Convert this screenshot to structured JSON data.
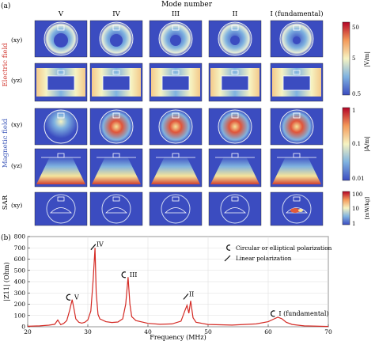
{
  "figure_a": {
    "panel_label": "(a)",
    "top_title": "Mode number",
    "columns": [
      "V",
      "IV",
      "III",
      "II",
      "I (fundamental)"
    ],
    "electric_field_label": "Electric field",
    "magnetic_field_label": "Magnetic field",
    "sar_label": "SAR",
    "row_labels": [
      "(xy)",
      "(yz)",
      "(xy)",
      "(yz)",
      "(xy)"
    ],
    "colorbars": [
      {
        "name": "electric",
        "unit": "|V/m|",
        "ticks": [
          "50",
          "5",
          "0.5"
        ],
        "scale": "log"
      },
      {
        "name": "magnetic",
        "unit": "|A/m|",
        "ticks": [
          "1",
          "0.1",
          "0.01"
        ],
        "scale": "log"
      },
      {
        "name": "sar",
        "unit": "[mW/kg]",
        "ticks": [
          "100",
          "10",
          "1"
        ],
        "scale": "log"
      }
    ],
    "colors": {
      "background": "#3a4ea6",
      "cold": "#3f56b0",
      "warm": "#f4e39a",
      "hot": "#c8302a",
      "electric_label": "#d1332b",
      "magnetic_label": "#3a55b8"
    }
  },
  "figure_b": {
    "panel_label": "(b)",
    "legend": [
      "Circular or elliptical polarization",
      "Linear polarization"
    ],
    "annotations": [
      {
        "label": "V",
        "symbol": "circular",
        "x": 27.5,
        "y": 235
      },
      {
        "label": "IV",
        "symbol": "linear",
        "x": 31.3,
        "y": 690
      },
      {
        "label": "III",
        "symbol": "circular",
        "x": 36.7,
        "y": 435
      },
      {
        "label": "II",
        "symbol": "linear",
        "x": 46.7,
        "y": 250
      },
      {
        "label": "I (fundamental)",
        "symbol": "circular",
        "x": 61.5,
        "y": 90
      }
    ]
  },
  "chart_data": {
    "type": "line",
    "xlabel": "Frequency (MHz)",
    "ylabel": "|Z11| (Ohm)",
    "xlim": [
      20,
      70
    ],
    "ylim": [
      0,
      800
    ],
    "xticks": [
      "20",
      "30",
      "40",
      "50",
      "60",
      "70"
    ],
    "yticks": [
      "0",
      "100",
      "200",
      "300",
      "400",
      "500",
      "600",
      "700",
      "800"
    ],
    "grid": true,
    "series": [
      {
        "color": "#d42a24",
        "x": [
          20,
          22,
          23.5,
          24.5,
          25,
          25.5,
          26,
          26.5,
          27,
          27.4,
          27.7,
          28,
          28.5,
          29,
          29.5,
          30,
          30.5,
          30.9,
          31.2,
          31.4,
          31.7,
          32,
          33,
          34,
          35,
          35.8,
          36.3,
          36.7,
          37,
          37.3,
          38,
          40,
          42,
          44,
          45.5,
          46.2,
          46.5,
          46.8,
          47.1,
          47.5,
          48,
          50,
          54,
          58,
          60,
          61,
          61.6,
          62.3,
          63,
          64,
          66,
          70
        ],
        "y": [
          4,
          8,
          14,
          22,
          60,
          18,
          30,
          55,
          150,
          240,
          160,
          70,
          40,
          32,
          40,
          60,
          140,
          420,
          700,
          300,
          110,
          70,
          45,
          38,
          42,
          70,
          200,
          440,
          200,
          90,
          55,
          30,
          22,
          25,
          50,
          150,
          190,
          120,
          230,
          80,
          40,
          20,
          15,
          25,
          45,
          70,
          85,
          70,
          40,
          20,
          8,
          3
        ]
      }
    ]
  }
}
